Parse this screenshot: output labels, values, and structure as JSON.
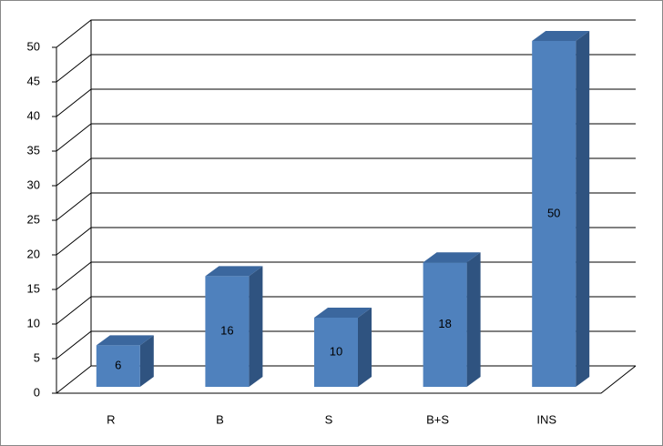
{
  "chart_data": {
    "type": "bar",
    "categories": [
      "R",
      "B",
      "S",
      "B+S",
      "INS"
    ],
    "values": [
      6,
      16,
      10,
      18,
      50
    ],
    "color": "#4f81bd",
    "ylim": [
      0,
      50
    ],
    "yticks": [
      0,
      5,
      10,
      15,
      20,
      25,
      30,
      35,
      40,
      45,
      50
    ],
    "grid": true
  }
}
